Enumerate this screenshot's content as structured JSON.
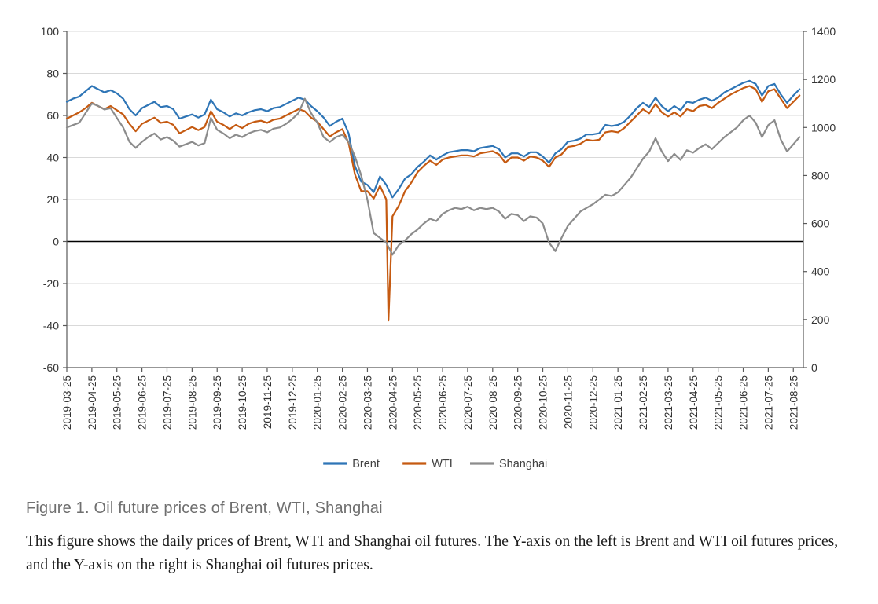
{
  "figure": {
    "title": "Figure 1. Oil future prices of Brent, WTI, Shanghai",
    "caption": "This figure shows the daily prices of Brent, WTI and Shanghai oil futures. The Y-axis on the left is Brent and WTI oil futures prices, and the Y-axis on the right is Shanghai oil futures prices."
  },
  "chart_data": {
    "type": "line",
    "title": "",
    "xlabel": "",
    "ylabel_left": "",
    "ylabel_right": "",
    "grid": true,
    "grid_color": "#d9d9d9",
    "frame_color": "#595959",
    "zero_line_color": "#000000",
    "tick_label_color": "#333333",
    "legend_position": "bottom-center",
    "left_axis": {
      "min": -60,
      "max": 100,
      "ticks": [
        100,
        80,
        60,
        40,
        20,
        0,
        -20,
        -40,
        -60
      ]
    },
    "right_axis": {
      "min": 0,
      "max": 1400,
      "ticks": [
        1400,
        1200,
        1000,
        800,
        600,
        400,
        200,
        0
      ]
    },
    "x_labels": [
      "2019-03-25",
      "2019-04-25",
      "2019-05-25",
      "2019-06-25",
      "2019-07-25",
      "2019-08-25",
      "2019-09-25",
      "2019-10-25",
      "2019-11-25",
      "2019-12-25",
      "2020-01-25",
      "2020-02-25",
      "2020-03-25",
      "2020-04-25",
      "2020-05-25",
      "2020-06-25",
      "2020-07-25",
      "2020-08-25",
      "2020-09-25",
      "2020-10-25",
      "2020-11-25",
      "2020-12-25",
      "2021-01-25",
      "2021-02-25",
      "2021-03-25",
      "2021-04-25",
      "2021-05-25",
      "2021-06-25",
      "2021-07-25",
      "2021-08-25"
    ],
    "x_grid": {
      "start": 0,
      "step": 0.25,
      "x_max": 29.4,
      "unit": "months-since-2019-03-25"
    },
    "legend": [
      "Brent",
      "WTI",
      "Shanghai"
    ],
    "series": [
      {
        "name": "Brent",
        "color": "#2e75b6",
        "axis": "left",
        "y": [
          66.5,
          68.0,
          69.0,
          71.5,
          74.0,
          72.5,
          71.0,
          72.0,
          70.5,
          68.0,
          63.0,
          60.0,
          63.5,
          65.0,
          66.5,
          64.0,
          64.5,
          63.0,
          58.5,
          59.5,
          60.5,
          59.0,
          60.5,
          67.5,
          63.0,
          61.5,
          59.5,
          61.0,
          60.0,
          61.5,
          62.5,
          63.0,
          62.0,
          63.5,
          64.0,
          65.5,
          67.0,
          68.5,
          67.5,
          64.5,
          62.0,
          59.0,
          55.0,
          57.0,
          58.5,
          51.5,
          36.0,
          28.5,
          27.0,
          23.5,
          31.0,
          27.0,
          21.0,
          25.0,
          30.0,
          32.0,
          35.5,
          38.0,
          41.0,
          39.0,
          41.0,
          42.5,
          43.0,
          43.5,
          43.5,
          43.0,
          44.5,
          45.0,
          45.5,
          44.0,
          40.0,
          42.0,
          42.0,
          40.5,
          42.5,
          42.5,
          40.5,
          37.5,
          42.0,
          44.0,
          47.5,
          48.0,
          49.0,
          51.0,
          51.0,
          51.5,
          55.5,
          55.0,
          55.5,
          57.0,
          60.0,
          63.5,
          66.0,
          64.0,
          68.5,
          64.5,
          62.0,
          64.5,
          62.5,
          66.5,
          66.0,
          67.5,
          68.5,
          67.0,
          68.5,
          71.0,
          72.5,
          74.0,
          75.5,
          76.5,
          75.0,
          69.5,
          74.0,
          75.0,
          70.0,
          66.0,
          69.5,
          72.5
        ]
      },
      {
        "name": "WTI",
        "color": "#c55a11",
        "axis": "left",
        "spike": {
          "after_index": 51,
          "x": 12.84,
          "y": -37.6
        },
        "y": [
          58.5,
          60.0,
          61.5,
          63.5,
          66.0,
          64.5,
          63.0,
          64.5,
          62.5,
          60.5,
          56.0,
          52.5,
          56.0,
          57.5,
          59.0,
          56.5,
          57.0,
          55.5,
          51.5,
          53.0,
          54.5,
          53.0,
          54.5,
          62.0,
          57.0,
          55.5,
          53.5,
          55.5,
          54.0,
          56.0,
          57.0,
          57.5,
          56.5,
          58.0,
          58.5,
          60.0,
          61.5,
          63.0,
          62.0,
          59.0,
          57.0,
          53.5,
          50.0,
          52.0,
          53.5,
          47.0,
          32.0,
          24.0,
          24.0,
          20.5,
          26.5,
          20.0,
          12.0,
          17.0,
          24.0,
          28.0,
          33.0,
          36.0,
          38.5,
          36.5,
          39.0,
          40.0,
          40.5,
          41.0,
          41.0,
          40.5,
          42.0,
          42.5,
          43.0,
          41.5,
          37.5,
          40.0,
          40.0,
          38.5,
          40.5,
          40.0,
          38.5,
          35.5,
          40.0,
          41.5,
          45.0,
          45.5,
          46.5,
          48.5,
          48.0,
          48.5,
          52.0,
          52.5,
          52.0,
          54.0,
          57.0,
          60.0,
          63.0,
          61.0,
          65.5,
          61.5,
          59.5,
          61.5,
          59.5,
          63.0,
          62.0,
          64.5,
          65.0,
          63.5,
          66.0,
          68.0,
          70.0,
          71.5,
          73.0,
          74.0,
          72.5,
          66.5,
          71.5,
          72.5,
          68.0,
          63.5,
          66.5,
          69.5
        ]
      },
      {
        "name": "Shanghai",
        "color": "#8c8c8c",
        "axis": "right",
        "y": [
          1000,
          1010,
          1020,
          1060,
          1100,
          1090,
          1075,
          1080,
          1040,
          1000,
          940,
          915,
          940,
          960,
          975,
          950,
          960,
          945,
          920,
          930,
          940,
          925,
          935,
          1040,
          990,
          975,
          955,
          970,
          960,
          975,
          985,
          990,
          980,
          995,
          1000,
          1015,
          1035,
          1060,
          1120,
          1060,
          1020,
          960,
          940,
          960,
          970,
          940,
          880,
          800,
          700,
          560,
          540,
          520,
          470,
          510,
          530,
          555,
          575,
          600,
          620,
          610,
          640,
          655,
          665,
          660,
          670,
          655,
          665,
          660,
          665,
          650,
          620,
          640,
          635,
          610,
          630,
          625,
          600,
          520,
          485,
          540,
          590,
          620,
          650,
          665,
          680,
          700,
          720,
          715,
          730,
          760,
          790,
          830,
          870,
          900,
          955,
          900,
          860,
          890,
          865,
          905,
          895,
          915,
          930,
          910,
          935,
          960,
          980,
          1000,
          1030,
          1050,
          1020,
          960,
          1010,
          1030,
          950,
          900,
          930,
          960
        ]
      }
    ]
  }
}
